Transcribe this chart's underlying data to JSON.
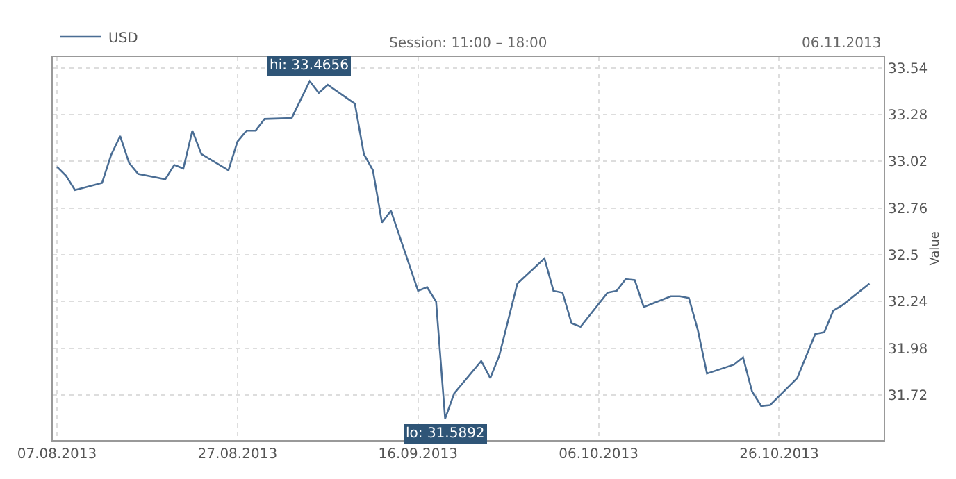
{
  "chart_data": {
    "type": "line",
    "subtitle": "Session: 11:00 – 18:00",
    "ylabel": "Value",
    "x": [
      "2013-08-07",
      "2013-08-08",
      "2013-08-09",
      "2013-08-12",
      "2013-08-13",
      "2013-08-14",
      "2013-08-15",
      "2013-08-16",
      "2013-08-19",
      "2013-08-20",
      "2013-08-21",
      "2013-08-22",
      "2013-08-23",
      "2013-08-26",
      "2013-08-27",
      "2013-08-28",
      "2013-08-29",
      "2013-08-30",
      "2013-09-02",
      "2013-09-04",
      "2013-09-05",
      "2013-09-06",
      "2013-09-09",
      "2013-09-10",
      "2013-09-11",
      "2013-09-12",
      "2013-09-13",
      "2013-09-16",
      "2013-09-17",
      "2013-09-18",
      "2013-09-19",
      "2013-09-20",
      "2013-09-23",
      "2013-09-24",
      "2013-09-25",
      "2013-09-27",
      "2013-09-30",
      "2013-10-01",
      "2013-10-02",
      "2013-10-03",
      "2013-10-04",
      "2013-10-07",
      "2013-10-08",
      "2013-10-09",
      "2013-10-10",
      "2013-10-11",
      "2013-10-14",
      "2013-10-15",
      "2013-10-16",
      "2013-10-17",
      "2013-10-18",
      "2013-10-21",
      "2013-10-22",
      "2013-10-23",
      "2013-10-24",
      "2013-10-25",
      "2013-10-28",
      "2013-10-30",
      "2013-10-31",
      "2013-11-01",
      "2013-11-02",
      "2013-11-05"
    ],
    "series": [
      {
        "name": "USD",
        "color": "#4a6d94",
        "values": [
          32.99,
          32.94,
          32.86,
          32.9,
          33.055,
          33.16,
          33.01,
          32.95,
          32.92,
          33.0,
          32.98,
          33.19,
          33.06,
          32.97,
          33.13,
          33.19,
          33.19,
          33.255,
          33.26,
          33.4656,
          33.4,
          33.445,
          33.34,
          33.06,
          32.97,
          32.68,
          32.745,
          32.3,
          32.32,
          32.24,
          31.5892,
          31.73,
          31.91,
          31.815,
          31.94,
          32.34,
          32.48,
          32.3,
          32.29,
          32.12,
          32.1,
          32.29,
          32.3,
          32.365,
          32.36,
          32.21,
          32.27,
          32.27,
          32.26,
          32.08,
          31.84,
          31.89,
          31.93,
          31.74,
          31.66,
          31.665,
          31.815,
          32.06,
          32.07,
          32.19,
          32.22,
          32.34
        ]
      }
    ],
    "annotations": [
      {
        "text": "hi: 33.4656",
        "x": "2013-09-04",
        "y": 33.4656
      },
      {
        "text": "lo: 31.5892",
        "x": "2013-09-19",
        "y": 31.5892
      },
      "06.11.2013"
    ],
    "xlim": [
      "2013-08-06T13:00",
      "2013-11-06T14:00"
    ],
    "xticks": [
      {
        "value": "2013-08-07",
        "label": "07.08.2013"
      },
      {
        "value": "2013-08-27",
        "label": "27.08.2013"
      },
      {
        "value": "2013-09-16",
        "label": "16.09.2013"
      },
      {
        "value": "2013-10-06",
        "label": "06.10.2013"
      },
      {
        "value": "2013-10-26",
        "label": "26.10.2013"
      }
    ],
    "ylim": [
      31.47,
      33.6
    ],
    "yticks": [
      31.72,
      31.98,
      32.24,
      32.5,
      32.76,
      33.02,
      33.28,
      33.54
    ],
    "grid": true,
    "legend": "top left",
    "line_style": "solid",
    "marker": "none"
  }
}
